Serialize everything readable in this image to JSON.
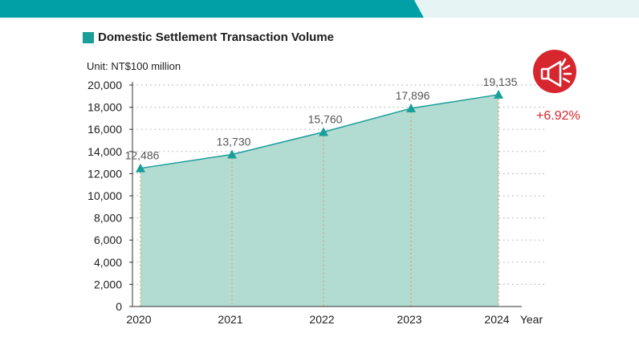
{
  "title": "Domestic Settlement Transaction Volume",
  "unit": "Unit: NT$100 million",
  "change_label": "+6.92%",
  "colors": {
    "accent": "#1a9e9a",
    "area_fill": "#b2dcd2",
    "highlight": "#d7262e",
    "band": "#00a0a6",
    "band_light": "#e6f4f4"
  },
  "icons": {
    "badge": "megaphone-icon"
  },
  "chart_data": {
    "type": "area",
    "title": "Domestic Settlement Transaction Volume",
    "xlabel": "Year",
    "ylabel": "",
    "categories": [
      "2020",
      "2021",
      "2022",
      "2023",
      "2024"
    ],
    "values": [
      12486,
      13730,
      15760,
      17896,
      19135
    ],
    "value_labels": [
      "12,486",
      "13,730",
      "15,760",
      "17,896",
      "19,135"
    ],
    "ylim": [
      0,
      20000
    ],
    "yticks": [
      0,
      2000,
      4000,
      6000,
      8000,
      10000,
      12000,
      14000,
      16000,
      18000,
      20000
    ],
    "ytick_labels": [
      "0",
      "2,000",
      "4,000",
      "6,000",
      "8,000",
      "10,000",
      "12,000",
      "14,000",
      "16,000",
      "18,000",
      "20,000"
    ],
    "grid": true,
    "legend": "none"
  }
}
